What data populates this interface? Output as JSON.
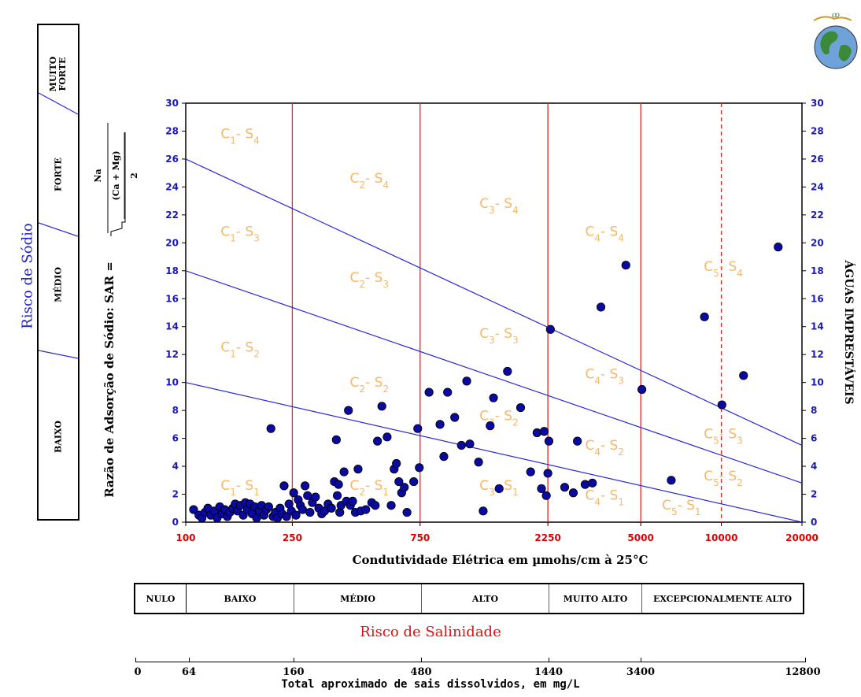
{
  "sodium_panel": {
    "title": "Risco de Sódio",
    "bands": [
      "MUITO FORTE",
      "FORTE",
      "MÉDIO",
      "BAIXO"
    ]
  },
  "y_axis_label": "Razão de Adsorção de Sódio: SAR =",
  "sar_formula": {
    "numerator": "Na",
    "denominator": "(Ca + Mg)",
    "divisor": "2"
  },
  "right_axis_label": "ÁGUAS IMPRESTÁVEIS",
  "x_axis_label": "Condutividade Elétrica em µmohs/cm à 25°C",
  "salinity_panel": {
    "cells": [
      "NULO",
      "BAIXO",
      "MÉDIO",
      "ALTO",
      "MUITO ALTO",
      "EXCEPCIONALMENTE ALTO"
    ],
    "title": "Risco de Salinidade"
  },
  "tds_scale": {
    "ticks": [
      "0",
      "64",
      "160",
      "480",
      "1440",
      "3400",
      "12800"
    ],
    "title": "Total aproximado de sais dissolvidos, em mg/L"
  },
  "colors": {
    "points": "#0a0aa0",
    "risk_lines": "#2a2ad8",
    "boundaries": "#ee2222",
    "class_labels": "#f5b86a",
    "x_ticks": "#dd0000",
    "y_ticks": "#1a1ab0"
  },
  "chart_data": {
    "type": "scatter",
    "title": "",
    "x_scale": "log",
    "xlim": [
      100,
      20000
    ],
    "ylim": [
      0,
      30
    ],
    "x_ticks": [
      100,
      250,
      750,
      2250,
      5000,
      10000,
      20000
    ],
    "y_ticks": [
      0,
      2,
      4,
      6,
      8,
      10,
      12,
      14,
      16,
      18,
      20,
      22,
      24,
      26,
      28,
      30
    ],
    "conductivity_boundaries": [
      250,
      750,
      2250,
      5000,
      10000
    ],
    "dashed_boundary": 10000,
    "risk_lines": [
      {
        "x": [
          100,
          20000
        ],
        "y": [
          10,
          0
        ]
      },
      {
        "x": [
          100,
          20000
        ],
        "y": [
          18,
          2.8
        ]
      },
      {
        "x": [
          100,
          20000
        ],
        "y": [
          26,
          5.5
        ]
      }
    ],
    "class_labels": [
      {
        "c": "1",
        "s": "4",
        "x": 135,
        "y": 27.5
      },
      {
        "c": "1",
        "s": "3",
        "x": 135,
        "y": 20.5
      },
      {
        "c": "1",
        "s": "2",
        "x": 135,
        "y": 12.2
      },
      {
        "c": "1",
        "s": "1",
        "x": 135,
        "y": 2.3
      },
      {
        "c": "2",
        "s": "4",
        "x": 410,
        "y": 24.3
      },
      {
        "c": "2",
        "s": "3",
        "x": 410,
        "y": 17.2
      },
      {
        "c": "2",
        "s": "2",
        "x": 410,
        "y": 9.7
      },
      {
        "c": "2",
        "s": "1",
        "x": 410,
        "y": 2.3
      },
      {
        "c": "3",
        "s": "4",
        "x": 1250,
        "y": 22.5
      },
      {
        "c": "3",
        "s": "3",
        "x": 1250,
        "y": 13.2
      },
      {
        "c": "3",
        "s": "2",
        "x": 1250,
        "y": 7.3
      },
      {
        "c": "3",
        "s": "1",
        "x": 1250,
        "y": 2.3
      },
      {
        "c": "4",
        "s": "4",
        "x": 3100,
        "y": 20.5
      },
      {
        "c": "4",
        "s": "3",
        "x": 3100,
        "y": 10.3
      },
      {
        "c": "4",
        "s": "2",
        "x": 3100,
        "y": 5.2
      },
      {
        "c": "4",
        "s": "1",
        "x": 3100,
        "y": 1.6
      },
      {
        "c": "5",
        "s": "4",
        "x": 8600,
        "y": 18.0
      },
      {
        "c": "5",
        "s": "3",
        "x": 8600,
        "y": 6.0
      },
      {
        "c": "5",
        "s": "2",
        "x": 8600,
        "y": 3.0
      },
      {
        "c": "5",
        "s": "1",
        "x": 6000,
        "y": 0.9
      }
    ],
    "points": [
      [
        107,
        0.9
      ],
      [
        112,
        0.5
      ],
      [
        115,
        0.3
      ],
      [
        118,
        0.7
      ],
      [
        121,
        1.0
      ],
      [
        124,
        0.5
      ],
      [
        128,
        0.8
      ],
      [
        131,
        0.3
      ],
      [
        134,
        1.1
      ],
      [
        137,
        0.6
      ],
      [
        140,
        0.9
      ],
      [
        143,
        0.4
      ],
      [
        146,
        0.7
      ],
      [
        150,
        1.0
      ],
      [
        153,
        1.3
      ],
      [
        156,
        0.8
      ],
      [
        160,
        1.2
      ],
      [
        164,
        0.5
      ],
      [
        167,
        1.4
      ],
      [
        170,
        0.9
      ],
      [
        174,
        1.3
      ],
      [
        177,
        0.6
      ],
      [
        181,
        1.1
      ],
      [
        184,
        0.3
      ],
      [
        188,
        0.8
      ],
      [
        192,
        1.2
      ],
      [
        196,
        0.5
      ],
      [
        200,
        0.9
      ],
      [
        204,
        1.1
      ],
      [
        208,
        6.7
      ],
      [
        212,
        0.4
      ],
      [
        216,
        0.7
      ],
      [
        220,
        0.3
      ],
      [
        225,
        1.0
      ],
      [
        229,
        0.6
      ],
      [
        233,
        2.6
      ],
      [
        238,
        0.4
      ],
      [
        243,
        1.3
      ],
      [
        248,
        0.8
      ],
      [
        253,
        2.1
      ],
      [
        258,
        0.5
      ],
      [
        263,
        1.6
      ],
      [
        268,
        1.2
      ],
      [
        273,
        0.9
      ],
      [
        279,
        2.6
      ],
      [
        285,
        1.9
      ],
      [
        291,
        0.7
      ],
      [
        297,
        1.4
      ],
      [
        305,
        1.8
      ],
      [
        314,
        1.0
      ],
      [
        322,
        0.6
      ],
      [
        330,
        0.8
      ],
      [
        340,
        1.3
      ],
      [
        350,
        1.0
      ],
      [
        359,
        2.9
      ],
      [
        365,
        5.9
      ],
      [
        368,
        1.9
      ],
      [
        372,
        2.7
      ],
      [
        376,
        0.7
      ],
      [
        380,
        1.2
      ],
      [
        390,
        3.6
      ],
      [
        398,
        1.5
      ],
      [
        405,
        8.0
      ],
      [
        412,
        1.2
      ],
      [
        420,
        1.5
      ],
      [
        430,
        0.7
      ],
      [
        440,
        3.8
      ],
      [
        450,
        0.8
      ],
      [
        470,
        0.9
      ],
      [
        495,
        1.4
      ],
      [
        510,
        1.2
      ],
      [
        520,
        5.8
      ],
      [
        540,
        8.3
      ],
      [
        565,
        6.1
      ],
      [
        585,
        1.2
      ],
      [
        600,
        3.8
      ],
      [
        612,
        4.2
      ],
      [
        625,
        2.9
      ],
      [
        640,
        2.1
      ],
      [
        655,
        2.5
      ],
      [
        670,
        0.7
      ],
      [
        710,
        2.9
      ],
      [
        735,
        6.7
      ],
      [
        745,
        3.9
      ],
      [
        810,
        9.3
      ],
      [
        890,
        7.0
      ],
      [
        920,
        4.7
      ],
      [
        950,
        9.3
      ],
      [
        1010,
        7.5
      ],
      [
        1070,
        5.5
      ],
      [
        1120,
        10.1
      ],
      [
        1150,
        5.6
      ],
      [
        1240,
        4.3
      ],
      [
        1290,
        0.8
      ],
      [
        1370,
        6.9
      ],
      [
        1410,
        8.9
      ],
      [
        1480,
        2.4
      ],
      [
        1590,
        10.8
      ],
      [
        1780,
        8.2
      ],
      [
        1940,
        3.6
      ],
      [
        2050,
        6.4
      ],
      [
        2130,
        2.4
      ],
      [
        2180,
        6.5
      ],
      [
        2220,
        1.9
      ],
      [
        2250,
        3.5
      ],
      [
        2270,
        5.8
      ],
      [
        2300,
        13.8
      ],
      [
        2600,
        2.5
      ],
      [
        2800,
        2.1
      ],
      [
        2900,
        5.8
      ],
      [
        3100,
        2.7
      ],
      [
        3300,
        2.8
      ],
      [
        3550,
        15.4
      ],
      [
        4400,
        18.4
      ],
      [
        5050,
        9.5
      ],
      [
        6500,
        3.0
      ],
      [
        8650,
        14.7
      ],
      [
        10050,
        8.4
      ],
      [
        12100,
        10.5
      ],
      [
        16300,
        19.7
      ]
    ]
  }
}
